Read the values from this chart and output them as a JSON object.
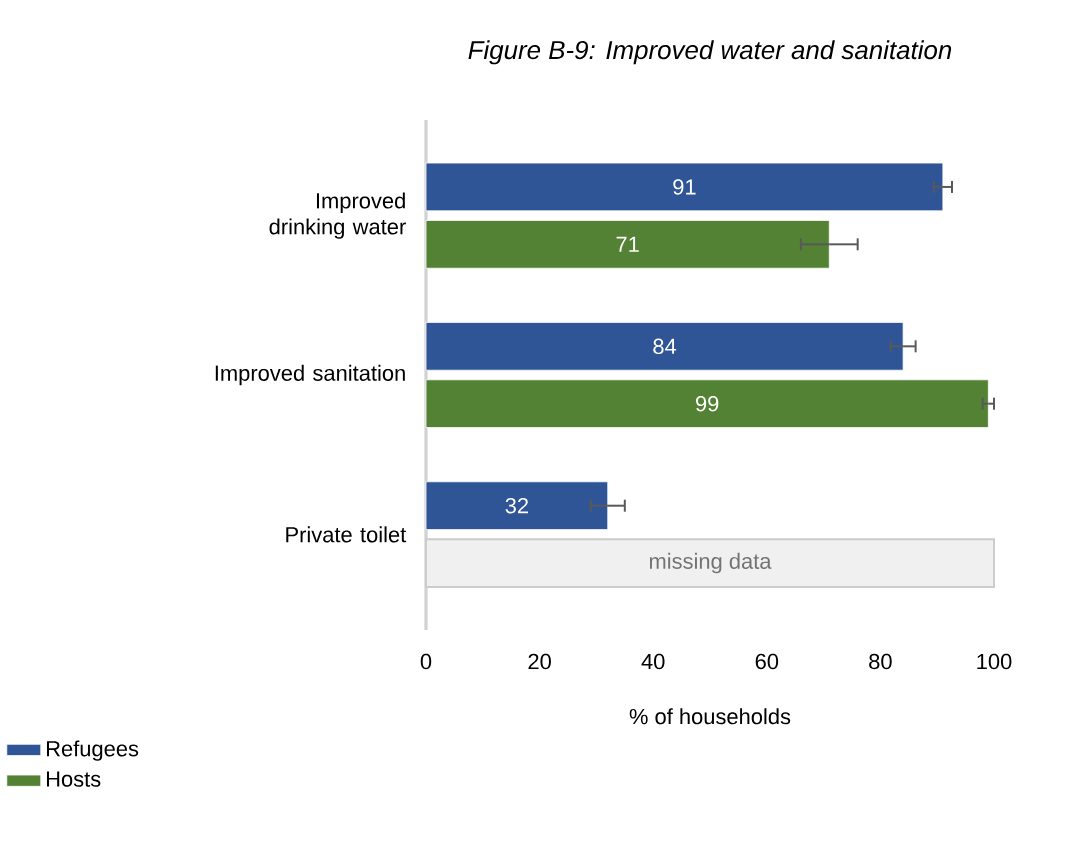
{
  "chart_data": {
    "type": "bar",
    "orientation": "horizontal",
    "title": "*Figure B-9: Improved water and sanitation*",
    "xlabel": "% of households",
    "categories": [
      "Improved drinking water",
      "Improved sanitation",
      "Private toilet"
    ],
    "series": [
      {
        "name": "Refugees",
        "color": "#2f5597",
        "values": [
          91,
          84,
          32
        ],
        "errors": [
          1.6,
          2.2,
          3
        ]
      },
      {
        "name": "Hosts",
        "color": "#548235",
        "values": [
          71,
          99,
          null
        ],
        "errors": [
          5,
          1,
          null
        ]
      }
    ],
    "xlim": [
      0,
      100
    ],
    "xticks": [
      0,
      20,
      40,
      60,
      80,
      100
    ],
    "data_labels": true,
    "legend": "bottom left",
    "grid": false,
    "bands": [
      {
        "axis": "x",
        "from": 0,
        "to": 100,
        "label": "missing data",
        "color": "#f0f0f0"
      }
    ]
  }
}
